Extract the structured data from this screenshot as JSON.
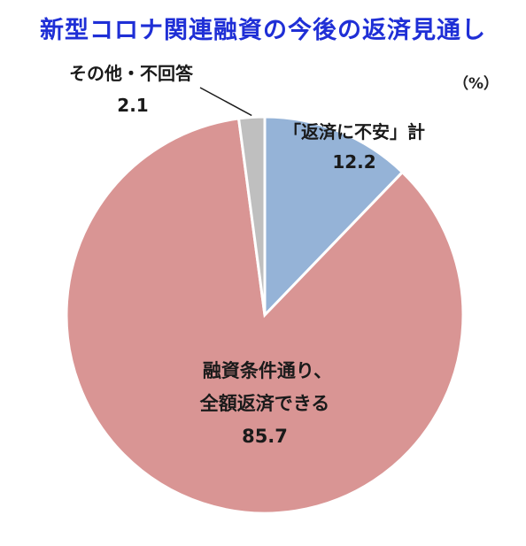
{
  "title": "新型コロナ関連融資の今後の返済見通し",
  "unit": "（%）",
  "colors": {
    "title": "#1f2fd6"
  },
  "chart_data": {
    "type": "pie",
    "slices": [
      {
        "label": "「返済に不安」計",
        "value": 12.2,
        "color": "#95b3d7"
      },
      {
        "label_lines": [
          "融資条件通り、",
          "全額返済できる"
        ],
        "value": 85.7,
        "color": "#d99594"
      },
      {
        "label": "その他・不回答",
        "value": 2.1,
        "color": "#bfbfbf"
      }
    ],
    "start": "12 o'clock",
    "direction": "clockwise"
  }
}
